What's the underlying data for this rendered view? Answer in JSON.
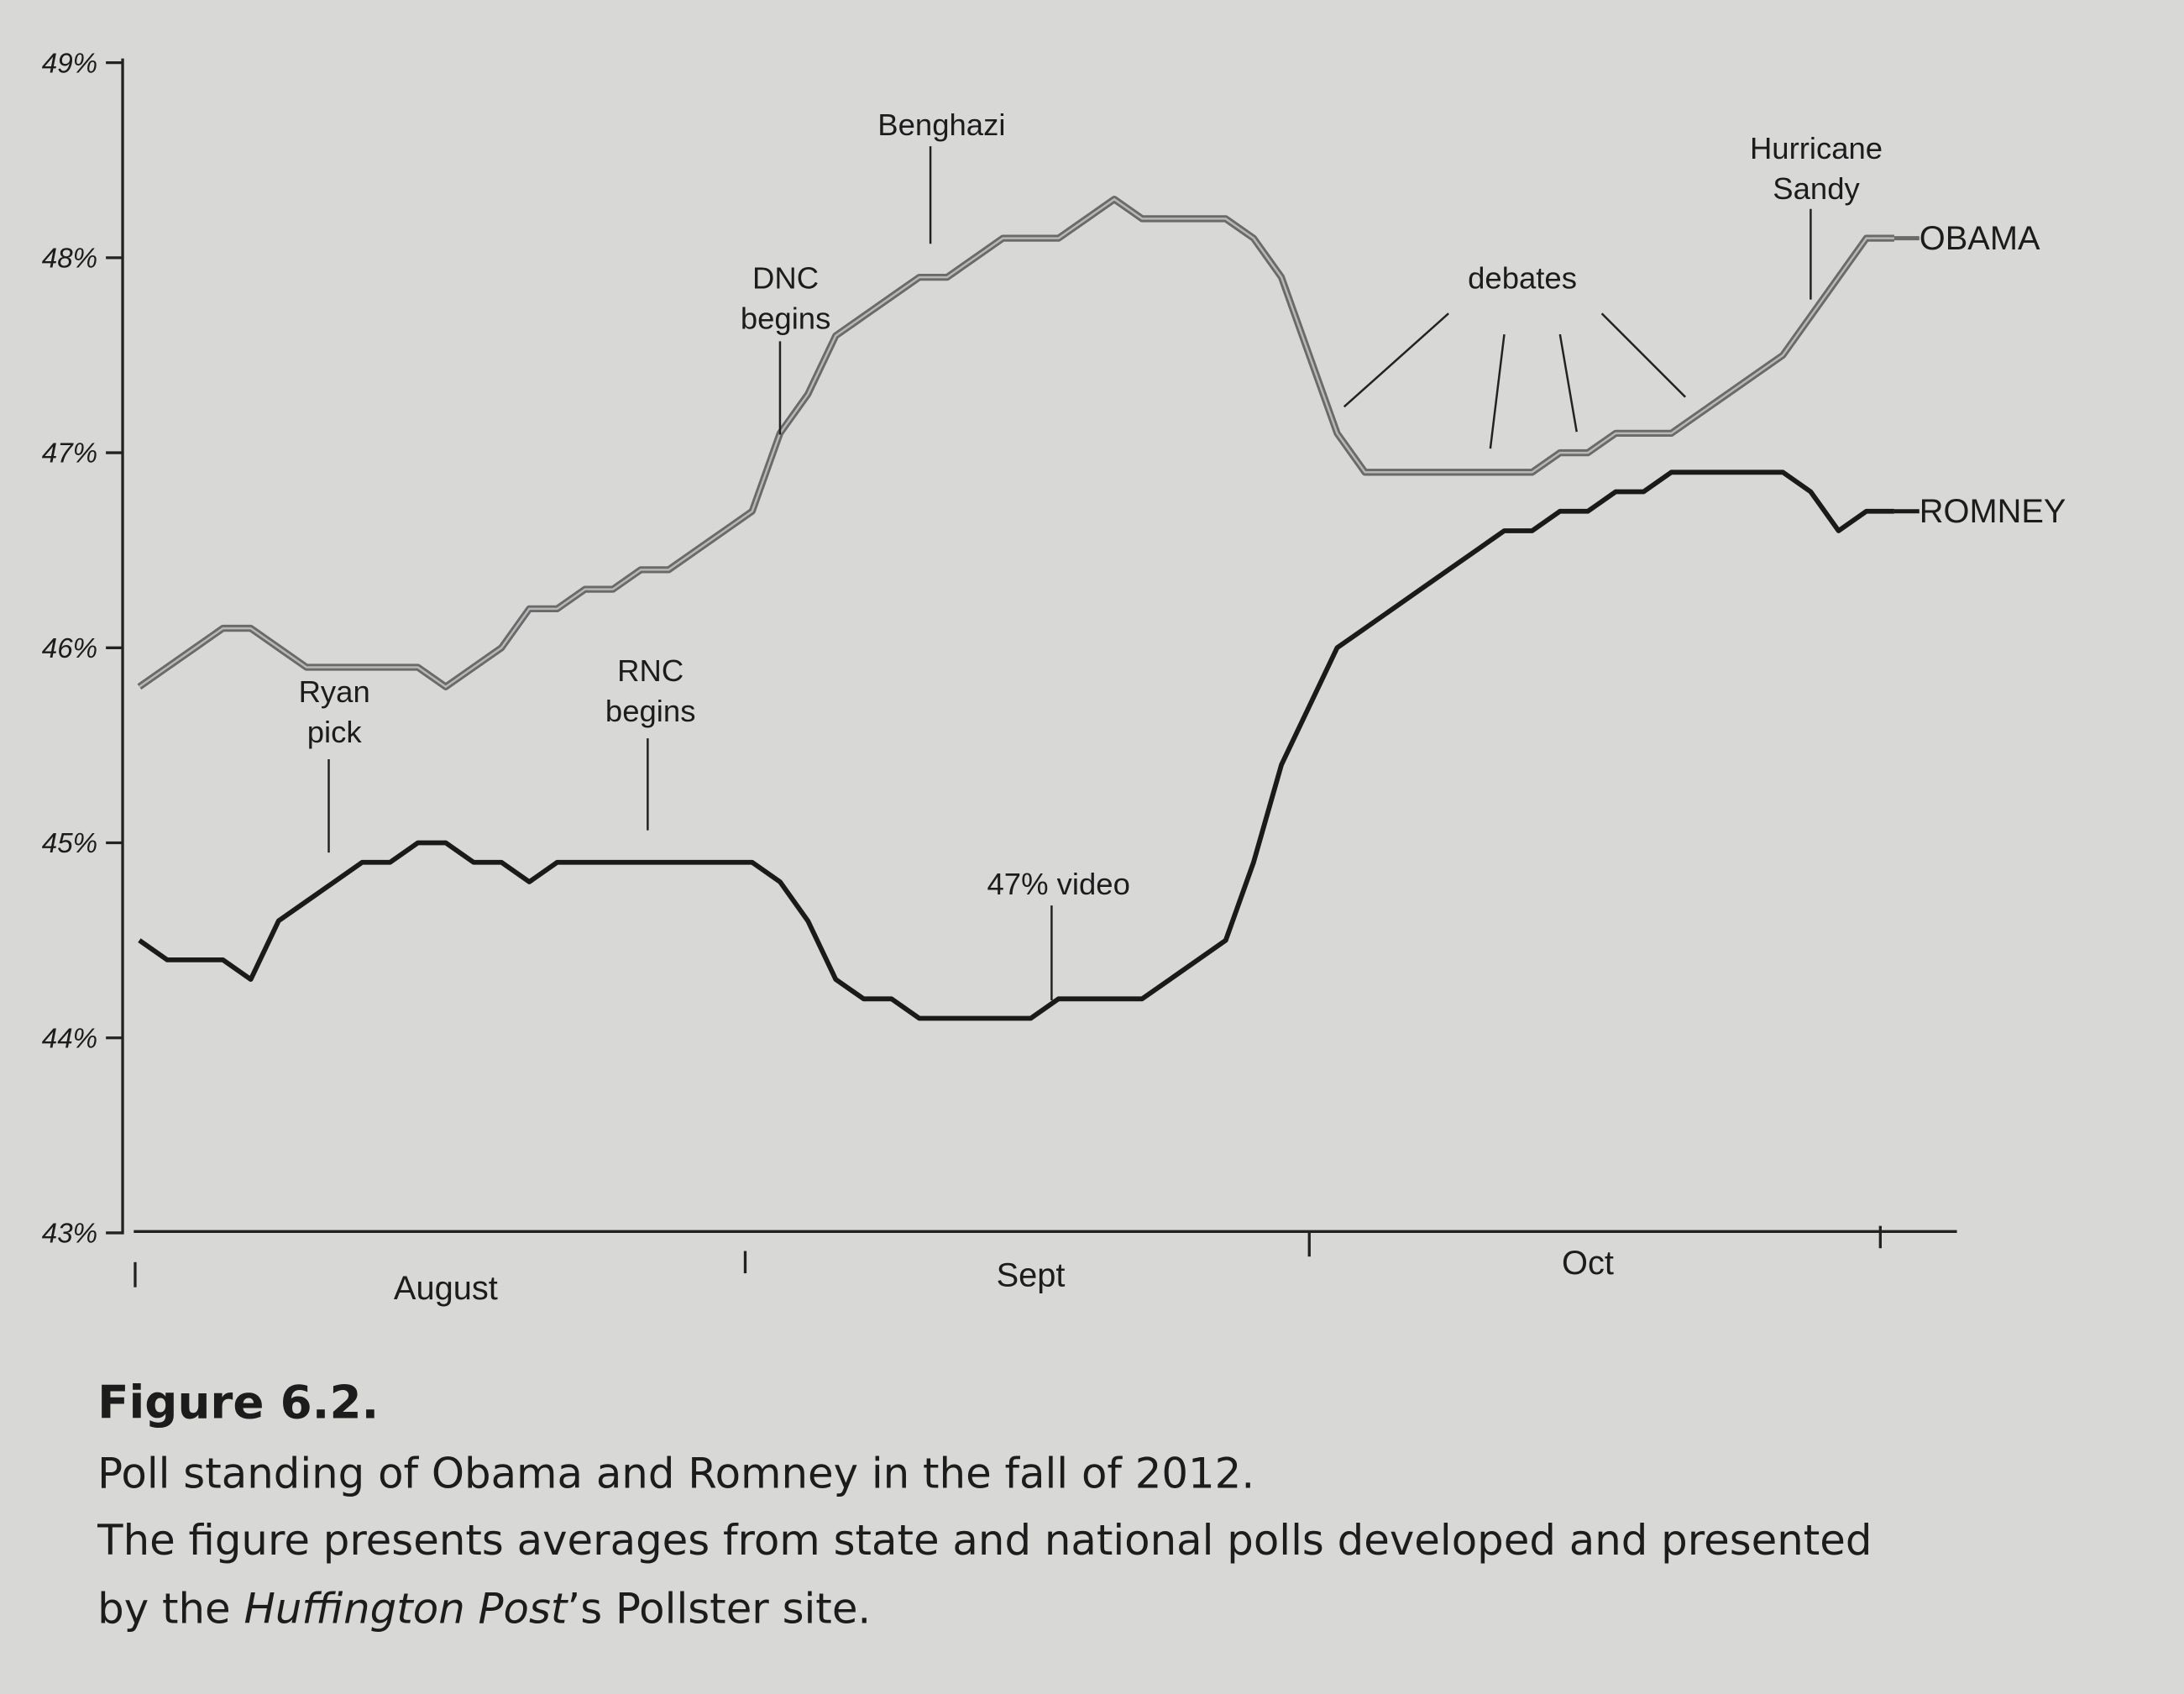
{
  "chart_data": {
    "type": "line",
    "categories": [
      null,
      null,
      null,
      null,
      null,
      null,
      null,
      null,
      null,
      null,
      null,
      "August",
      null,
      null,
      null,
      null,
      null,
      null,
      null,
      null,
      null,
      null,
      null,
      null,
      null,
      null,
      null,
      null,
      null,
      null,
      null,
      null,
      "Sept",
      null,
      null,
      null,
      null,
      null,
      null,
      null,
      null,
      null,
      null,
      null,
      null,
      null,
      null,
      null,
      null,
      null,
      null,
      null,
      "Oct",
      null,
      null,
      null,
      null,
      null,
      null,
      null,
      null,
      null,
      null,
      null
    ],
    "series": [
      {
        "name": "OBAMA",
        "color": "#6a6a6a",
        "values": [
          45.8,
          45.9,
          46.0,
          46.1,
          46.1,
          46.0,
          45.9,
          45.9,
          45.9,
          45.9,
          45.9,
          45.8,
          45.9,
          46.0,
          46.2,
          46.2,
          46.3,
          46.3,
          46.4,
          46.4,
          46.5,
          46.6,
          46.7,
          47.1,
          47.3,
          47.6,
          47.7,
          47.8,
          47.9,
          47.9,
          48.0,
          48.1,
          48.1,
          48.1,
          48.2,
          48.3,
          48.2,
          48.2,
          48.2,
          48.2,
          48.1,
          47.9,
          47.5,
          47.1,
          46.9,
          46.9,
          46.9,
          46.9,
          46.9,
          46.9,
          46.9,
          47.0,
          47.0,
          47.1,
          47.1,
          47.1,
          47.2,
          47.3,
          47.4,
          47.5,
          47.7,
          47.9,
          48.1,
          48.1
        ]
      },
      {
        "name": "ROMNEY",
        "color": "#1a1a1a",
        "values": [
          44.5,
          44.4,
          44.4,
          44.4,
          44.3,
          44.6,
          44.7,
          44.8,
          44.9,
          44.9,
          45.0,
          45.0,
          44.9,
          44.9,
          44.8,
          44.9,
          44.9,
          44.9,
          44.9,
          44.9,
          44.9,
          44.9,
          44.9,
          44.8,
          44.6,
          44.3,
          44.2,
          44.2,
          44.1,
          44.1,
          44.1,
          44.1,
          44.1,
          44.2,
          44.2,
          44.2,
          44.2,
          44.3,
          44.4,
          44.5,
          44.9,
          45.4,
          45.7,
          46.0,
          46.1,
          46.2,
          46.3,
          46.4,
          46.5,
          46.6,
          46.6,
          46.7,
          46.7,
          46.8,
          46.8,
          46.9,
          46.9,
          46.9,
          46.9,
          46.9,
          46.8,
          46.6,
          46.7,
          46.7
        ]
      }
    ],
    "ylim": [
      43,
      49
    ],
    "yticks": [
      {
        "value": 43,
        "label": "43%"
      },
      {
        "value": 44,
        "label": "44%"
      },
      {
        "value": 45,
        "label": "45%"
      },
      {
        "value": 46,
        "label": "46%"
      },
      {
        "value": 47,
        "label": "47%"
      },
      {
        "value": 48,
        "label": "48%"
      },
      {
        "value": 49,
        "label": "49%"
      }
    ],
    "annotations": [
      {
        "lines": [
          "Ryan",
          "pick"
        ]
      },
      {
        "lines": [
          "RNC",
          "begins"
        ]
      },
      {
        "lines": [
          "DNC",
          "begins"
        ]
      },
      {
        "lines": [
          "Benghazi"
        ]
      },
      {
        "lines": [
          "47% video"
        ]
      },
      {
        "lines": [
          "debates"
        ]
      },
      {
        "lines": [
          "Hurricane",
          "Sandy"
        ]
      }
    ]
  },
  "caption": {
    "label": "Figure 6.2.",
    "lines": [
      "Poll standing of Obama and Romney in the fall of 2012.",
      "The figure presents averages from state and national polls developed and presented"
    ],
    "last_line": [
      "by the ",
      "Huffington Post",
      "’s Pollster site."
    ]
  }
}
